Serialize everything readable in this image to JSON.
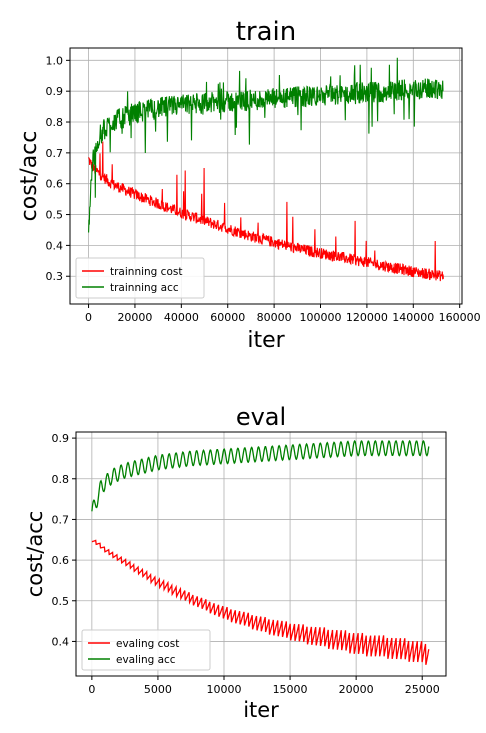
{
  "chart_data": [
    {
      "type": "line",
      "title": "train",
      "xlabel": "iter",
      "ylabel": "cost/acc",
      "xlim": [
        -8000,
        161000
      ],
      "ylim": [
        0.21,
        1.04
      ],
      "xticks": [
        0,
        20000,
        40000,
        60000,
        80000,
        100000,
        120000,
        140000,
        160000
      ],
      "yticks": [
        0.3,
        0.4,
        0.5,
        0.6,
        0.7,
        0.8,
        0.9,
        1.0
      ],
      "xtick_labels": [
        "0",
        "20000",
        "40000",
        "60000",
        "80000",
        "100000",
        "120000",
        "140000",
        "160000"
      ],
      "ytick_labels": [
        "0.3",
        "0.4",
        "0.5",
        "0.6",
        "0.7",
        "0.8",
        "0.9",
        "1.0"
      ],
      "grid": true,
      "legend_position": "lower-left",
      "series": [
        {
          "name": "trainning cost",
          "color": "#ff0000",
          "x": [
            0,
            2000,
            5000,
            10000,
            20000,
            30000,
            40000,
            50000,
            60000,
            70000,
            80000,
            90000,
            100000,
            110000,
            120000,
            130000,
            140000,
            153000
          ],
          "values": [
            0.68,
            0.65,
            0.63,
            0.6,
            0.565,
            0.535,
            0.505,
            0.48,
            0.455,
            0.43,
            0.41,
            0.39,
            0.375,
            0.36,
            0.345,
            0.33,
            0.315,
            0.3
          ]
        },
        {
          "name": "trainning acc",
          "color": "#008000",
          "x": [
            0,
            1000,
            2000,
            4000,
            6000,
            10000,
            20000,
            30000,
            40000,
            50000,
            60000,
            70000,
            80000,
            90000,
            100000,
            110000,
            120000,
            130000,
            140000,
            153000
          ],
          "values": [
            0.44,
            0.6,
            0.68,
            0.74,
            0.77,
            0.8,
            0.83,
            0.845,
            0.855,
            0.86,
            0.865,
            0.87,
            0.875,
            0.88,
            0.885,
            0.89,
            0.895,
            0.9,
            0.905,
            0.91
          ]
        }
      ]
    },
    {
      "type": "line",
      "title": "eval",
      "xlabel": "iter",
      "ylabel": "cost/acc",
      "xlim": [
        -1200,
        26800
      ],
      "ylim": [
        0.315,
        0.915
      ],
      "xticks": [
        0,
        5000,
        10000,
        15000,
        20000,
        25000
      ],
      "yticks": [
        0.4,
        0.5,
        0.6,
        0.7,
        0.8,
        0.9
      ],
      "xtick_labels": [
        "0",
        "5000",
        "10000",
        "15000",
        "20000",
        "25000"
      ],
      "ytick_labels": [
        "0.4",
        "0.5",
        "0.6",
        "0.7",
        "0.8",
        "0.9"
      ],
      "grid": true,
      "legend_position": "lower-left",
      "series": [
        {
          "name": "evaling cost",
          "color": "#ff0000",
          "x": [
            0,
            500,
            1000,
            2000,
            3000,
            5000,
            7500,
            10000,
            12500,
            15000,
            17500,
            20000,
            22500,
            25500
          ],
          "values": [
            0.65,
            0.64,
            0.625,
            0.605,
            0.585,
            0.545,
            0.505,
            0.47,
            0.445,
            0.425,
            0.41,
            0.395,
            0.385,
            0.37
          ]
        },
        {
          "name": "evaling acc",
          "color": "#008000",
          "x": [
            0,
            300,
            700,
            1500,
            2500,
            5000,
            7500,
            10000,
            12500,
            15000,
            17500,
            20000,
            22500,
            25500
          ],
          "values": [
            0.72,
            0.74,
            0.78,
            0.805,
            0.82,
            0.84,
            0.85,
            0.855,
            0.86,
            0.865,
            0.87,
            0.875,
            0.875,
            0.875
          ]
        }
      ]
    }
  ]
}
